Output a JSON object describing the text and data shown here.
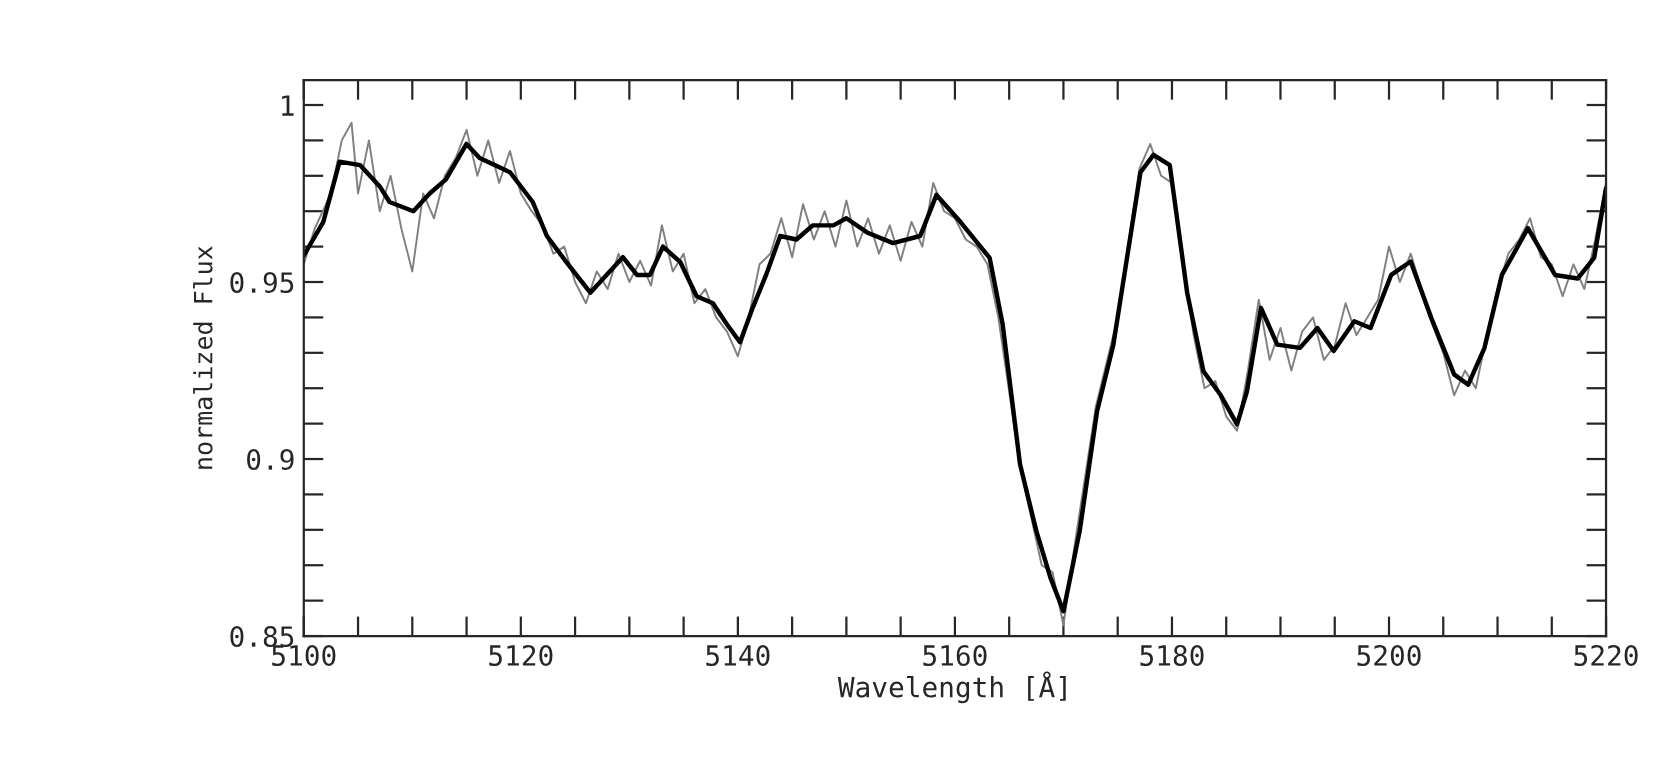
{
  "chart_data": {
    "type": "line",
    "xlabel": "Wavelength [Å]",
    "ylabel": "normalized Flux",
    "xlim": [
      5100,
      5220
    ],
    "ylim": [
      0.85,
      1.007
    ],
    "xticks": [
      5100,
      {
        "value": 5105,
        "label": null
      },
      5120,
      {
        "value": 5110,
        "label": null
      },
      {
        "value": 5115,
        "label": null
      },
      {
        "value": 5125,
        "label": null
      },
      {
        "value": 5130,
        "label": null
      },
      {
        "value": 5135,
        "label": null
      },
      5140,
      {
        "value": 5145,
        "label": null
      },
      {
        "value": 5150,
        "label": null
      },
      {
        "value": 5155,
        "label": null
      },
      5160,
      {
        "value": 5165,
        "label": null
      },
      {
        "value": 5170,
        "label": null
      },
      {
        "value": 5175,
        "label": null
      },
      5180,
      {
        "value": 5185,
        "label": null
      },
      {
        "value": 5190,
        "label": null
      },
      {
        "value": 5195,
        "label": null
      },
      5200,
      {
        "value": 5205,
        "label": null
      },
      {
        "value": 5210,
        "label": null
      },
      {
        "value": 5215,
        "label": null
      },
      5220
    ],
    "yticks": [
      {
        "value": 0.85,
        "label": "0.85"
      },
      {
        "value": 0.86,
        "label": null
      },
      {
        "value": 0.87,
        "label": null
      },
      {
        "value": 0.88,
        "label": null
      },
      {
        "value": 0.89,
        "label": null
      },
      {
        "value": 0.9,
        "label": "0.9"
      },
      {
        "value": 0.91,
        "label": null
      },
      {
        "value": 0.92,
        "label": null
      },
      {
        "value": 0.93,
        "label": null
      },
      {
        "value": 0.94,
        "label": null
      },
      {
        "value": 0.95,
        "label": "0.95"
      },
      {
        "value": 0.96,
        "label": null
      },
      {
        "value": 0.97,
        "label": null
      },
      {
        "value": 0.98,
        "label": null
      },
      {
        "value": 0.99,
        "label": null
      },
      {
        "value": 1.0,
        "label": "1"
      }
    ],
    "grid": false,
    "marker": "none",
    "line_style": "solid",
    "series": [
      {
        "color": "#808080",
        "x": [
          5100,
          5101,
          5102.5,
          5103.5,
          5104.4,
          5105,
          5106,
          5107,
          5108,
          5109,
          5110,
          5111,
          5112,
          5113,
          5114,
          5115,
          5116,
          5117,
          5118,
          5119,
          5120,
          5121,
          5122,
          5123,
          5124,
          5125,
          5126,
          5127,
          5128,
          5129,
          5130,
          5131,
          5132,
          5133,
          5134,
          5135,
          5136,
          5137,
          5138,
          5139,
          5140,
          5141,
          5142,
          5143,
          5144,
          5145,
          5146,
          5147,
          5148,
          5149,
          5150,
          5151,
          5152,
          5153,
          5154,
          5155,
          5156,
          5157,
          5158,
          5159,
          5160,
          5161,
          5162,
          5163,
          5164,
          5166,
          5168,
          5169,
          5170,
          5171,
          5173,
          5175,
          5177,
          5178,
          5179,
          5180,
          5182,
          5183,
          5184,
          5185,
          5186,
          5187,
          5188,
          5189,
          5190,
          5191,
          5192,
          5193,
          5194,
          5195,
          5196,
          5197,
          5198,
          5199,
          5200,
          5201,
          5202,
          5203,
          5204,
          5205,
          5206,
          5207,
          5208,
          5209,
          5210,
          5211,
          5212,
          5213,
          5214,
          5215,
          5216,
          5217,
          5218,
          5219,
          5220
        ],
        "values": [
          0.955,
          0.965,
          0.975,
          0.99,
          0.995,
          0.975,
          0.99,
          0.97,
          0.98,
          0.965,
          0.953,
          0.975,
          0.968,
          0.98,
          0.985,
          0.993,
          0.98,
          0.99,
          0.978,
          0.987,
          0.975,
          0.97,
          0.966,
          0.958,
          0.96,
          0.95,
          0.944,
          0.953,
          0.948,
          0.958,
          0.95,
          0.956,
          0.949,
          0.966,
          0.953,
          0.958,
          0.944,
          0.948,
          0.94,
          0.936,
          0.929,
          0.94,
          0.955,
          0.958,
          0.968,
          0.957,
          0.972,
          0.962,
          0.97,
          0.96,
          0.973,
          0.96,
          0.968,
          0.958,
          0.966,
          0.956,
          0.967,
          0.96,
          0.978,
          0.97,
          0.968,
          0.962,
          0.96,
          0.955,
          0.94,
          0.898,
          0.87,
          0.868,
          0.853,
          0.875,
          0.915,
          0.94,
          0.982,
          0.989,
          0.98,
          0.978,
          0.935,
          0.92,
          0.922,
          0.912,
          0.908,
          0.925,
          0.945,
          0.928,
          0.937,
          0.925,
          0.936,
          0.94,
          0.928,
          0.932,
          0.944,
          0.935,
          0.94,
          0.945,
          0.96,
          0.95,
          0.958,
          0.948,
          0.938,
          0.93,
          0.918,
          0.925,
          0.92,
          0.935,
          0.948,
          0.958,
          0.962,
          0.968,
          0.957,
          0.955,
          0.946,
          0.955,
          0.948,
          0.962,
          0.978
        ]
      },
      {
        "color": "#000000",
        "x": [
          5100,
          5101.8,
          5103.3,
          5105.2,
          5107,
          5107.9,
          5110.1,
          5111.6,
          5113.1,
          5115,
          5116.2,
          5119,
          5121.1,
          5122.4,
          5124.2,
          5126.4,
          5127.9,
          5129.4,
          5130.7,
          5131.9,
          5133.1,
          5134.7,
          5136.2,
          5137.7,
          5139,
          5140.2,
          5141.4,
          5142.6,
          5143.9,
          5145.4,
          5146.9,
          5148.8,
          5150,
          5151.9,
          5154.3,
          5156.8,
          5158.3,
          5160.5,
          5163.2,
          5164.4,
          5166,
          5167.5,
          5168.8,
          5170,
          5171.5,
          5173.1,
          5174.6,
          5177.1,
          5178.3,
          5179.8,
          5181.4,
          5182.9,
          5184.5,
          5186,
          5186.9,
          5188.2,
          5189.7,
          5191.8,
          5193.4,
          5194.9,
          5196.8,
          5198.3,
          5200.2,
          5202,
          5203.9,
          5206,
          5207.3,
          5208.8,
          5210.4,
          5212.8,
          5215.3,
          5217.4,
          5218.9,
          5220
        ],
        "values": [
          0.9575,
          0.967,
          0.984,
          0.983,
          0.977,
          0.9726,
          0.97,
          0.975,
          0.979,
          0.989,
          0.985,
          0.981,
          0.9726,
          0.963,
          0.9556,
          0.947,
          0.952,
          0.957,
          0.952,
          0.952,
          0.96,
          0.9556,
          0.946,
          0.944,
          0.938,
          0.933,
          0.943,
          0.952,
          0.963,
          0.962,
          0.966,
          0.966,
          0.968,
          0.964,
          0.961,
          0.963,
          0.9746,
          0.967,
          0.9568,
          0.938,
          0.8985,
          0.8797,
          0.8665,
          0.857,
          0.8797,
          0.9135,
          0.9323,
          0.981,
          0.9859,
          0.983,
          0.947,
          0.9248,
          0.918,
          0.9098,
          0.919,
          0.9427,
          0.9323,
          0.9314,
          0.937,
          0.9305,
          0.9389,
          0.937,
          0.952,
          0.9558,
          0.9398,
          0.9239,
          0.921,
          0.9314,
          0.952,
          0.9652,
          0.952,
          0.951,
          0.9568,
          0.9765
        ]
      }
    ]
  }
}
